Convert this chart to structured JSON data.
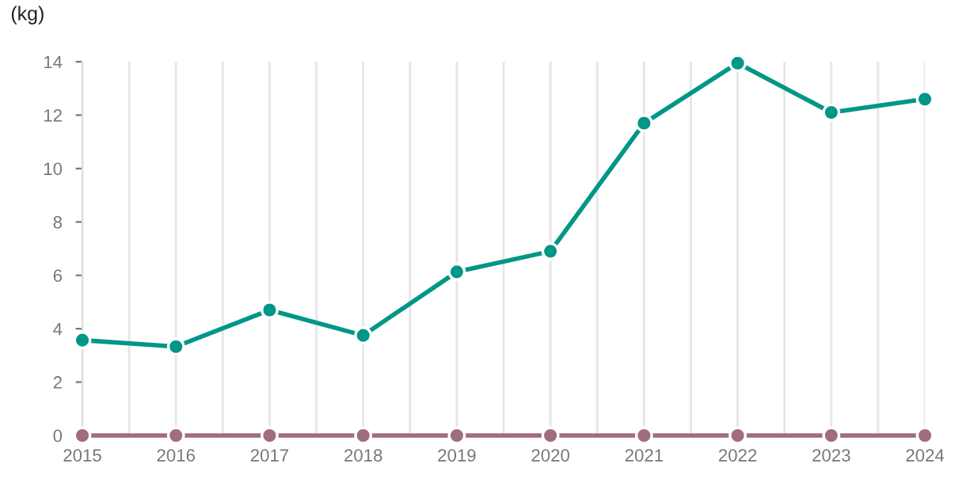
{
  "chart_data": {
    "type": "line",
    "ylabel": "(kg)",
    "x": [
      2015,
      2016,
      2017,
      2018,
      2019,
      2020,
      2021,
      2022,
      2023,
      2024
    ],
    "series": [
      {
        "color": "#009688",
        "values": [
          3.57,
          3.33,
          4.7,
          3.75,
          6.13,
          6.9,
          11.7,
          13.95,
          12.1,
          12.6
        ]
      },
      {
        "color": "#a06d7a",
        "values": [
          0,
          0,
          0,
          0,
          0,
          0,
          0,
          0,
          0,
          0
        ]
      }
    ],
    "xlim": [
      2015,
      2024
    ],
    "xticks": [
      2015,
      {
        "value": 2015.5,
        "label": null
      },
      2016,
      {
        "value": 2016.5,
        "label": null
      },
      2017,
      {
        "value": 2017.5,
        "label": null
      },
      2018,
      {
        "value": 2018.5,
        "label": null
      },
      2019,
      {
        "value": 2019.5,
        "label": null
      },
      2020,
      {
        "value": 2020.5,
        "label": null
      },
      2021,
      {
        "value": 2021.5,
        "label": null
      },
      2022,
      {
        "value": 2022.5,
        "label": null
      },
      2023,
      {
        "value": 2023.5,
        "label": null
      },
      2024
    ],
    "ylim": [
      0,
      14
    ],
    "yticks": [
      0,
      2,
      4,
      6,
      8,
      10,
      12,
      14
    ],
    "grid": "x",
    "marker": "circle",
    "line_style": "solid",
    "legend": false
  }
}
